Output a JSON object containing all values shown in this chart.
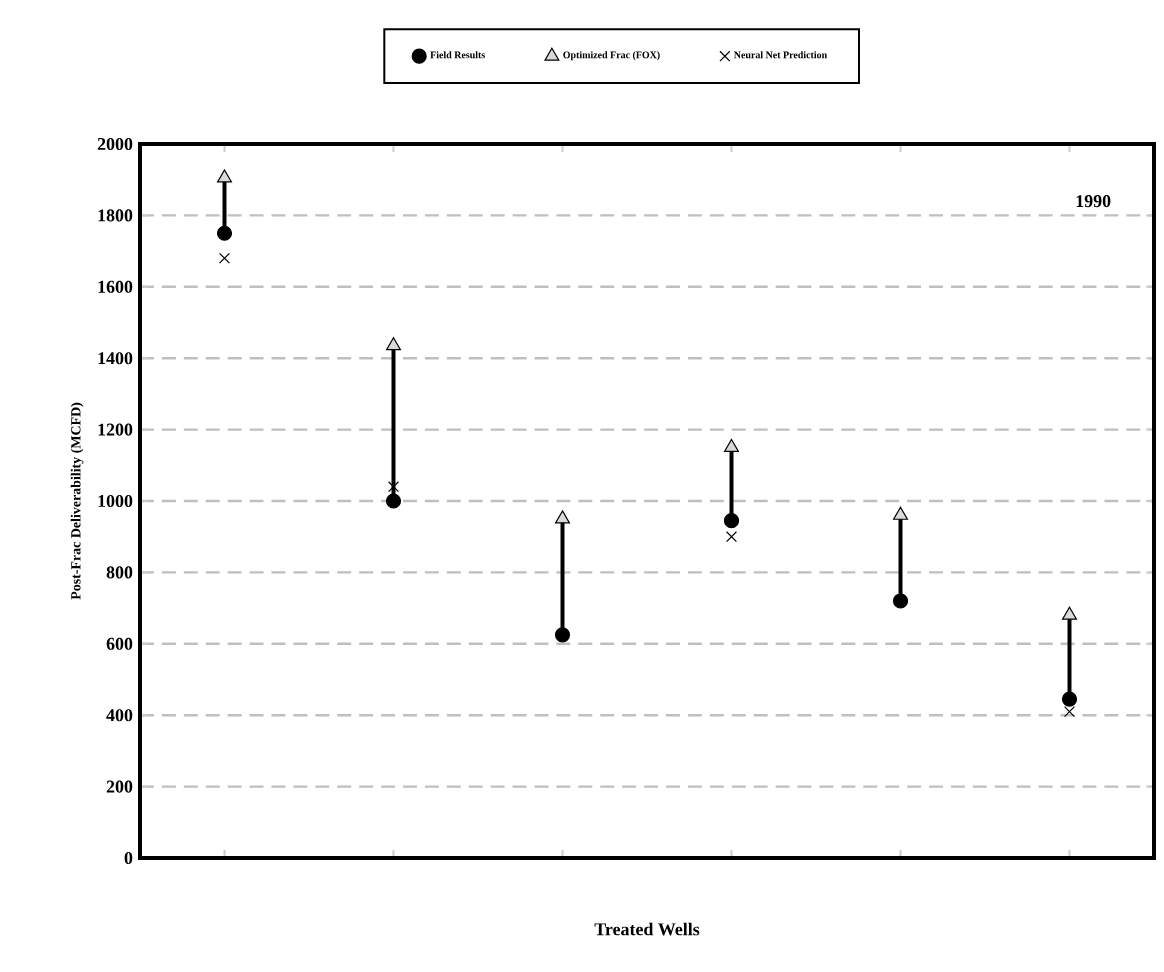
{
  "chart_data": {
    "type": "scatter",
    "xlabel": "Treated Wells",
    "ylabel": "Post-Frac Deliverability (MCFD)",
    "annotations": [
      "1990"
    ],
    "categories": [
      null,
      null,
      null,
      null,
      null,
      null
    ],
    "series": [
      {
        "name": "Field Results",
        "color": "#000000",
        "marker": "circle",
        "values": [
          1750,
          1000,
          625,
          945,
          720,
          445
        ]
      },
      {
        "name": "Optimized Frac (FOX)",
        "color": "#d9d9d9",
        "marker": "triangle",
        "values": [
          1905,
          1435,
          950,
          1150,
          960,
          680
        ]
      },
      {
        "name": "Neural Net Prediction",
        "color": "#000000",
        "marker": "cross",
        "values": [
          1680,
          1040,
          null,
          900,
          null,
          410
        ]
      }
    ],
    "ylim": [
      0,
      2000
    ],
    "yticks": [
      0,
      200,
      400,
      600,
      800,
      1000,
      1200,
      1400,
      1600,
      1800,
      2000
    ],
    "grid": "y",
    "legend": "top"
  }
}
